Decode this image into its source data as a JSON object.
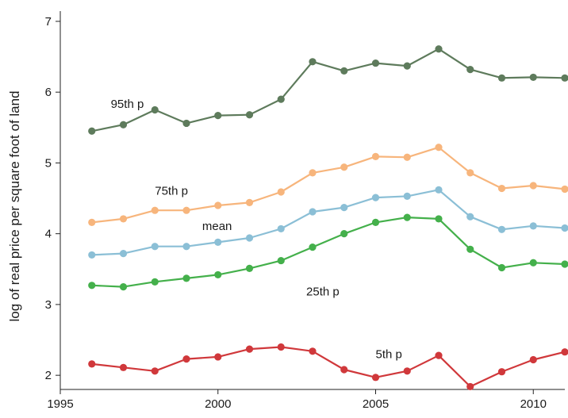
{
  "chart_data": {
    "type": "line",
    "title": "",
    "xlabel": "",
    "ylabel": "log of real price per square foot of land",
    "xlim": [
      1995,
      2011
    ],
    "ylim": [
      1.8,
      7.1
    ],
    "xticks": [
      1995,
      2000,
      2005,
      2010
    ],
    "yticks": [
      2,
      3,
      4,
      5,
      6,
      7
    ],
    "grid": false,
    "legend": "none",
    "x": [
      1996,
      1997,
      1998,
      1999,
      2000,
      2001,
      2002,
      2003,
      2004,
      2005,
      2006,
      2007,
      2008,
      2009,
      2010,
      2011
    ],
    "series": [
      {
        "name": "95th p",
        "color": "#5e7b5c",
        "values": [
          5.45,
          5.54,
          5.75,
          5.56,
          5.67,
          5.68,
          5.9,
          6.43,
          6.3,
          6.41,
          6.37,
          6.61,
          6.32,
          6.2,
          6.21,
          6.2
        ]
      },
      {
        "name": "75th p",
        "color": "#f7b57c",
        "values": [
          4.16,
          4.21,
          4.33,
          4.33,
          4.4,
          4.44,
          4.59,
          4.86,
          4.94,
          5.09,
          5.08,
          5.22,
          4.86,
          4.64,
          4.68,
          4.63
        ]
      },
      {
        "name": "mean",
        "color": "#8bbfd6",
        "values": [
          3.7,
          3.72,
          3.82,
          3.82,
          3.88,
          3.94,
          4.07,
          4.31,
          4.37,
          4.51,
          4.53,
          4.62,
          4.24,
          4.06,
          4.11,
          4.08
        ]
      },
      {
        "name": "25th p",
        "color": "#44b04b",
        "values": [
          3.27,
          3.25,
          3.32,
          3.37,
          3.42,
          3.51,
          3.62,
          3.81,
          4.0,
          4.16,
          4.23,
          4.21,
          3.78,
          3.52,
          3.59,
          3.57
        ]
      },
      {
        "name": "5th p",
        "color": "#d0383b",
        "values": [
          2.16,
          2.11,
          2.06,
          2.23,
          2.26,
          2.37,
          2.4,
          2.34,
          2.08,
          1.97,
          2.06,
          2.28,
          1.84,
          2.05,
          2.22,
          2.33
        ]
      }
    ],
    "annotations": [
      {
        "text": "95th p",
        "x": 1996.6,
        "y": 5.78
      },
      {
        "text": "75th p",
        "x": 1998.0,
        "y": 4.55
      },
      {
        "text": "mean",
        "x": 1999.5,
        "y": 4.05
      },
      {
        "text": "25th p",
        "x": 2002.8,
        "y": 3.13
      },
      {
        "text": "5th p",
        "x": 2005.0,
        "y": 2.24
      }
    ]
  }
}
